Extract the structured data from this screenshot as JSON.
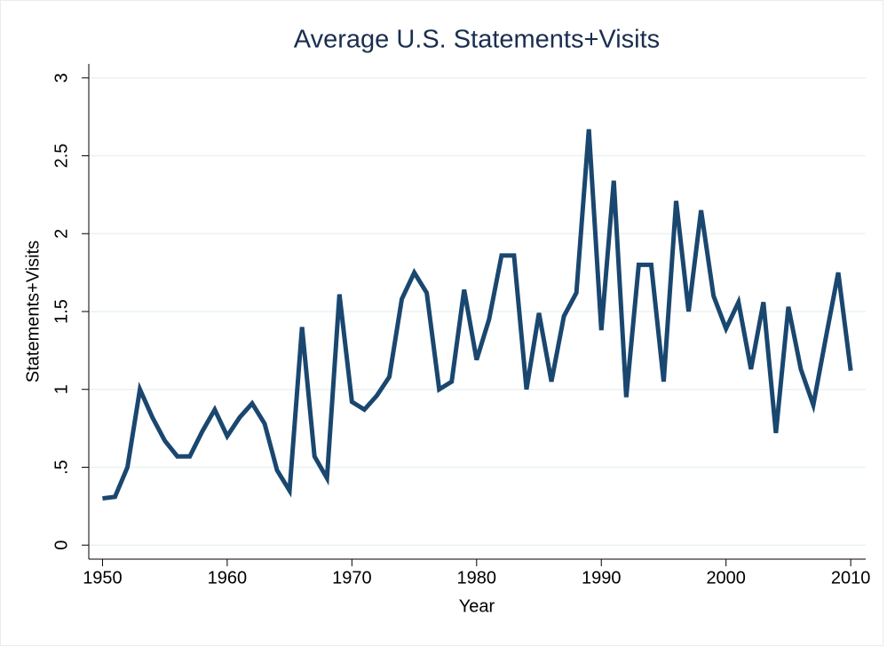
{
  "chart_data": {
    "type": "line",
    "title": "Average U.S. Statements+Visits",
    "x_label": "Year",
    "y_label": "Statements+Visits",
    "x": [
      1950,
      1951,
      1952,
      1953,
      1954,
      1955,
      1956,
      1957,
      1958,
      1959,
      1960,
      1961,
      1962,
      1963,
      1964,
      1965,
      1966,
      1967,
      1968,
      1969,
      1970,
      1971,
      1972,
      1973,
      1974,
      1975,
      1976,
      1977,
      1978,
      1979,
      1980,
      1981,
      1982,
      1983,
      1984,
      1985,
      1986,
      1987,
      1988,
      1989,
      1990,
      1991,
      1992,
      1993,
      1994,
      1995,
      1996,
      1997,
      1998,
      1999,
      2000,
      2001,
      2002,
      2003,
      2004,
      2005,
      2006,
      2007,
      2008,
      2009,
      2010
    ],
    "values": [
      0.3,
      0.31,
      0.5,
      1.0,
      0.82,
      0.67,
      0.57,
      0.57,
      0.73,
      0.87,
      0.7,
      0.82,
      0.91,
      0.78,
      0.48,
      0.35,
      1.4,
      0.57,
      0.43,
      1.61,
      0.92,
      0.87,
      0.96,
      1.08,
      1.58,
      1.75,
      1.62,
      1.0,
      1.05,
      1.64,
      1.19,
      1.45,
      1.86,
      1.86,
      1.0,
      1.49,
      1.05,
      1.47,
      1.62,
      2.67,
      1.38,
      2.34,
      0.95,
      1.8,
      1.8,
      1.05,
      2.21,
      1.5,
      2.15,
      1.6,
      1.39,
      1.56,
      1.13,
      1.56,
      0.72,
      1.53,
      1.13,
      0.9,
      1.33,
      1.75,
      1.12
    ],
    "color": "#1a476f",
    "xlim": [
      1948.9,
      2011.2
    ],
    "xticks": [
      1950,
      1960,
      1970,
      1980,
      1990,
      2000,
      2010
    ],
    "ylim": [
      -0.09,
      3.09
    ],
    "yticks": [
      0,
      {
        "value": 0.5,
        "label": ".5"
      },
      1,
      1.5,
      2,
      2.5,
      3
    ],
    "grid": true
  }
}
